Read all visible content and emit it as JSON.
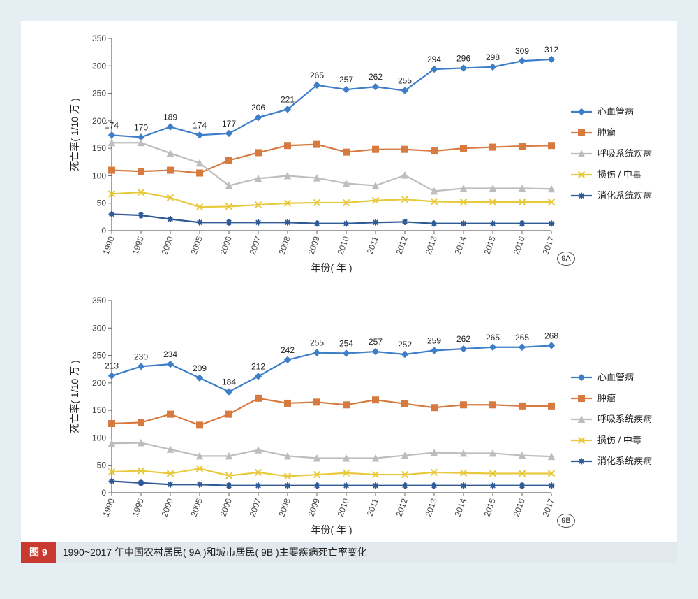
{
  "layout": {
    "outer_bg": "#e5eef3",
    "inner_bg": "#ffffff",
    "caption_bar_bg": "#e1e8ee",
    "caption_tag_bg": "#c8392f",
    "caption_tag_color": "#ffffff",
    "axis_color": "#666666",
    "tick_font_size": 12,
    "label_font_size": 14,
    "data_label_font_size": 12,
    "line_width": 2.2,
    "marker_size": 4.5
  },
  "caption": {
    "tag": "图 9",
    "text": "1990~2017 年中国农村居民( 9A )和城市居民( 9B )主要疾病死亡率变化"
  },
  "years": [
    "1990",
    "1995",
    "2000",
    "2005",
    "2006",
    "2007",
    "2008",
    "2009",
    "2010",
    "2011",
    "2012",
    "2013",
    "2014",
    "2015",
    "2016",
    "2017"
  ],
  "x_axis_label": "年份( 年 )",
  "y_axis_label": "死亡率( 1/10 万 )",
  "series_meta": [
    {
      "key": "cvd",
      "label": "心血管病",
      "color": "#3d7ec9",
      "marker": "diamond"
    },
    {
      "key": "tumor",
      "label": "肿瘤",
      "color": "#d67a3f",
      "marker": "square"
    },
    {
      "key": "resp",
      "label": "呼吸系统疾病",
      "color": "#bdbdbd",
      "marker": "triangle"
    },
    {
      "key": "injury",
      "label": "损伤 / 中毒",
      "color": "#e8c93a",
      "marker": "x"
    },
    {
      "key": "digest",
      "label": "消化系统疾病",
      "color": "#2f5a96",
      "marker": "star"
    }
  ],
  "panel_A": {
    "id": "9A",
    "ylim": [
      0,
      350
    ],
    "ytick_step": 50,
    "show_labels_for": "cvd",
    "data": {
      "cvd": [
        174,
        170,
        189,
        174,
        177,
        206,
        221,
        265,
        257,
        262,
        255,
        294,
        296,
        298,
        309,
        312
      ],
      "tumor": [
        110,
        108,
        110,
        105,
        128,
        142,
        155,
        157,
        143,
        148,
        148,
        145,
        150,
        152,
        154,
        155
      ],
      "resp": [
        160,
        160,
        141,
        123,
        82,
        95,
        100,
        96,
        86,
        82,
        101,
        72,
        77,
        77,
        77,
        76
      ],
      "injury": [
        67,
        70,
        60,
        43,
        44,
        47,
        50,
        51,
        51,
        55,
        57,
        53,
        52,
        52,
        52,
        52
      ],
      "digest": [
        30,
        28,
        21,
        15,
        15,
        15,
        15,
        13,
        13,
        15,
        16,
        13,
        13,
        13,
        13,
        13
      ]
    }
  },
  "panel_B": {
    "id": "9B",
    "ylim": [
      0,
      350
    ],
    "ytick_step": 50,
    "show_labels_for": "cvd",
    "data": {
      "cvd": [
        213,
        230,
        234,
        209,
        184,
        212,
        242,
        255,
        254,
        257,
        252,
        259,
        262,
        265,
        265,
        268
      ],
      "tumor": [
        126,
        128,
        143,
        123,
        143,
        172,
        163,
        165,
        160,
        169,
        162,
        155,
        160,
        160,
        158,
        158
      ],
      "resp": [
        90,
        91,
        79,
        67,
        67,
        78,
        67,
        63,
        63,
        63,
        68,
        73,
        72,
        72,
        68,
        66
      ],
      "injury": [
        38,
        40,
        35,
        44,
        31,
        37,
        30,
        33,
        36,
        33,
        33,
        37,
        36,
        35,
        35,
        35
      ],
      "digest": [
        21,
        18,
        15,
        15,
        13,
        13,
        13,
        13,
        13,
        13,
        13,
        13,
        13,
        13,
        13,
        13
      ]
    }
  }
}
